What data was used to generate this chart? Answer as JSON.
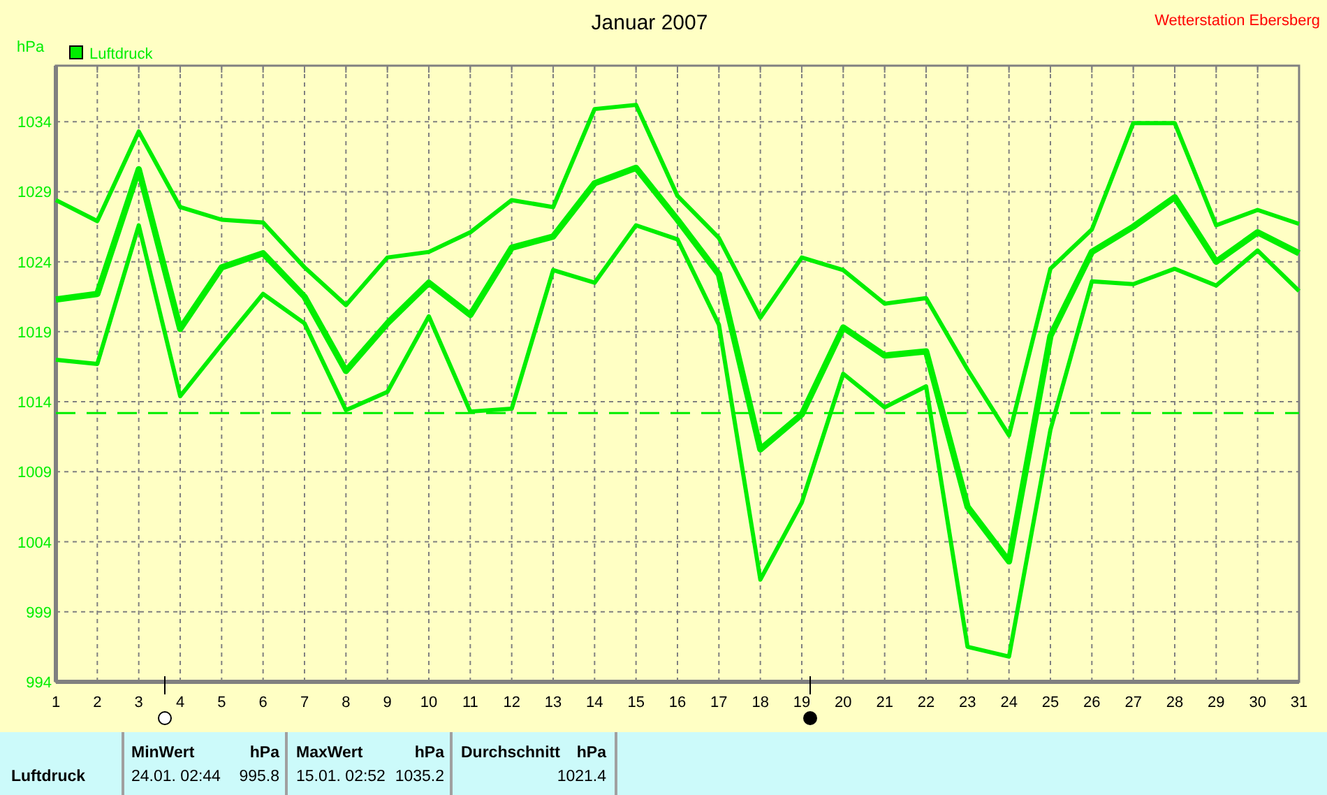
{
  "chart_data": {
    "type": "line",
    "title": "Januar 2007",
    "ylabel": "hPa",
    "annotations": [
      "Wetterstation Ebersberg",
      "MinWert",
      "hPa",
      "MaxWert",
      "hPa",
      "Durchschnitt",
      "hPa",
      "Luftdruck",
      "24.01.  02:44",
      "995.8",
      "15.01.  02:52",
      "1035.2",
      "1021.4"
    ],
    "x": [
      1,
      2,
      3,
      4,
      5,
      6,
      7,
      8,
      9,
      10,
      11,
      12,
      13,
      14,
      15,
      16,
      17,
      18,
      19,
      20,
      21,
      22,
      23,
      24,
      25,
      26,
      27,
      28,
      29,
      30,
      31
    ],
    "series": [
      {
        "color": "#00ee00",
        "values": [
          1028.4,
          1026.9,
          1033.3,
          1027.9,
          1027.0,
          1026.8,
          1023.6,
          1020.9,
          1024.3,
          1024.7,
          1026.1,
          1028.4,
          1027.9,
          1034.9,
          1035.2,
          1028.7,
          1025.7,
          1020.0,
          1024.3,
          1023.4,
          1021.0,
          1021.4,
          1016.3,
          1011.6,
          1023.5,
          1026.3,
          1033.9,
          1033.9,
          1026.6,
          1027.7,
          1026.7
        ]
      },
      {
        "name": "Luftdruck",
        "color": "#00ee00",
        "values": [
          1021.3,
          1021.7,
          1030.6,
          1019.2,
          1023.6,
          1024.6,
          1021.5,
          1016.2,
          1019.6,
          1022.5,
          1020.2,
          1025.0,
          1025.8,
          1029.6,
          1030.7,
          1027.0,
          1023.1,
          1010.6,
          1013.1,
          1019.3,
          1017.3,
          1017.6,
          1006.5,
          1002.6,
          1018.7,
          1024.7,
          1026.5,
          1028.6,
          1024.0,
          1026.1,
          1024.6
        ]
      },
      {
        "color": "#00ee00",
        "values": [
          1017.0,
          1016.7,
          1026.6,
          1014.4,
          1018.1,
          1021.7,
          1019.6,
          1013.4,
          1014.7,
          1020.1,
          1013.3,
          1013.5,
          1023.4,
          1022.5,
          1026.6,
          1025.6,
          1019.5,
          1001.3,
          1006.8,
          1016.0,
          1013.6,
          1015.1,
          996.5,
          995.8,
          1012.0,
          1022.6,
          1022.4,
          1023.5,
          1022.3,
          1024.8,
          1021.9
        ]
      }
    ],
    "xlim": [
      1,
      31
    ],
    "xticks": [
      1,
      2,
      3,
      4,
      5,
      6,
      7,
      8,
      9,
      10,
      11,
      12,
      13,
      14,
      15,
      16,
      17,
      18,
      19,
      20,
      21,
      22,
      23,
      24,
      25,
      26,
      27,
      28,
      29,
      30,
      31
    ],
    "ylim": [
      994,
      1038
    ],
    "yticks": [
      994,
      999,
      1004,
      1009,
      1014,
      1019,
      1024,
      1029,
      1034
    ],
    "ref_lines": [
      {
        "axis": "y",
        "value": 1013.2,
        "color": "#00ee00",
        "line_style": "dashed"
      }
    ],
    "grid": true,
    "legend": "top left",
    "marker": "none",
    "line_style": "solid"
  }
}
